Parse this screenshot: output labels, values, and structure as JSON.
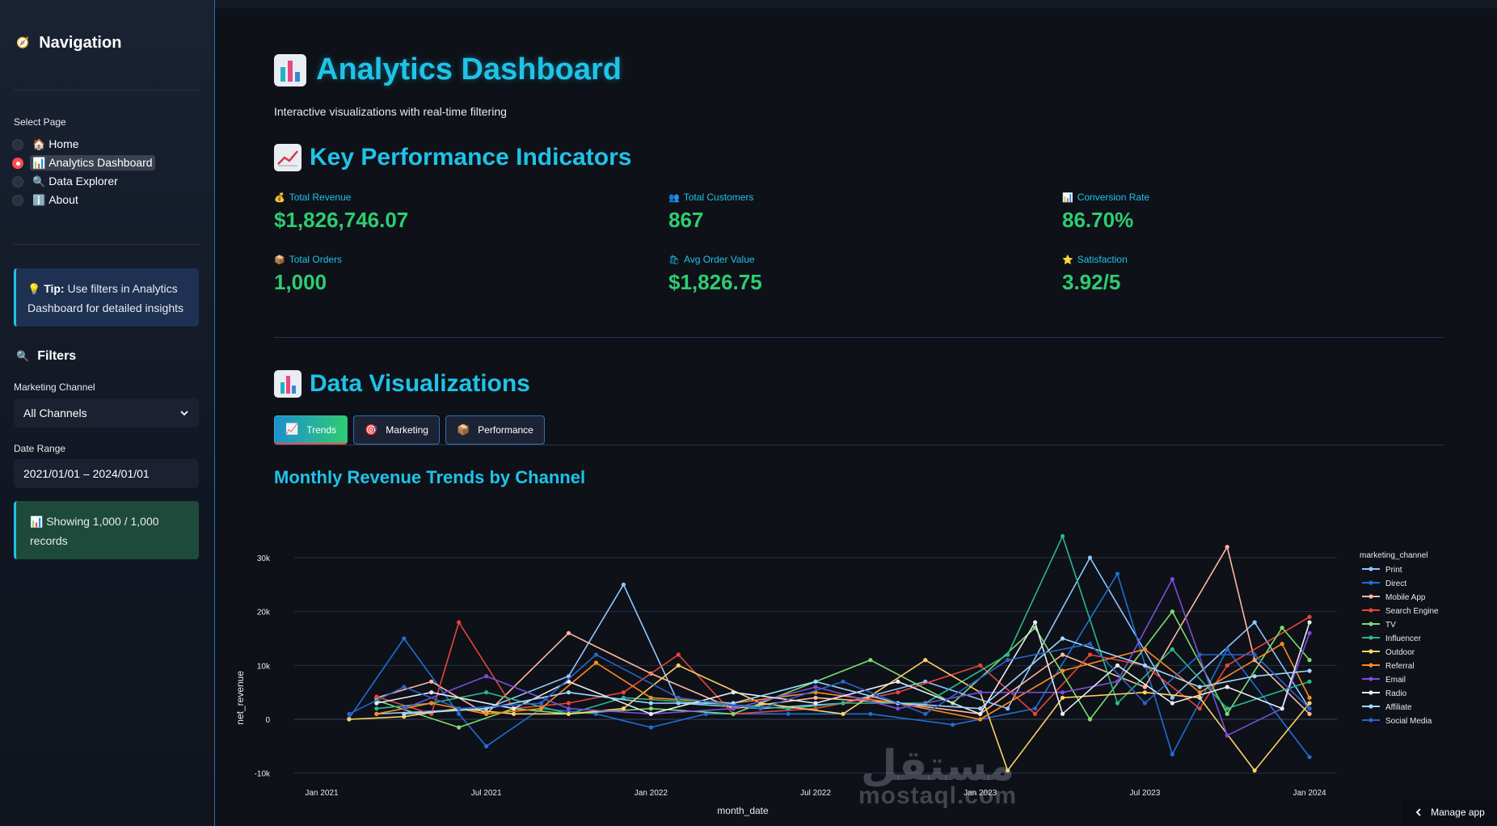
{
  "sidebar": {
    "nav_title": "Navigation",
    "select_page_label": "Select Page",
    "pages": [
      {
        "icon": "🏠",
        "label": "Home",
        "selected": false
      },
      {
        "icon": "📊",
        "label": "Analytics Dashboard",
        "selected": true
      },
      {
        "icon": "🔍",
        "label": "Data Explorer",
        "selected": false
      },
      {
        "icon": "ℹ️",
        "label": "About",
        "selected": false
      }
    ],
    "tip_bold": "Tip:",
    "tip_text": " Use filters in Analytics Dashboard for detailed insights",
    "filters_title": "Filters",
    "channel_label": "Marketing Channel",
    "channel_value": "All Channels",
    "date_label": "Date Range",
    "date_value": "2021/01/01 – 2024/01/01",
    "records_text": "Showing 1,000 / 1,000 records"
  },
  "main": {
    "page_title": "Analytics Dashboard",
    "subtitle": "Interactive visualizations with real-time filtering",
    "kpi_section_title": "Key Performance Indicators",
    "viz_section_title": "Data Visualizations",
    "kpis": [
      {
        "icon": "💰",
        "label": "Total Revenue",
        "value": "$1,826,746.07"
      },
      {
        "icon": "👥",
        "label": "Total Customers",
        "value": "867"
      },
      {
        "icon": "📊",
        "label": "Conversion Rate",
        "value": "86.70%"
      },
      {
        "icon": "📦",
        "label": "Total Orders",
        "value": "1,000"
      },
      {
        "icon": "🛍",
        "label": "Avg Order Value",
        "value": "$1,826.75"
      },
      {
        "icon": "⭐",
        "label": "Satisfaction",
        "value": "3.92/5"
      }
    ],
    "tabs": [
      {
        "icon": "📈",
        "label": "Trends",
        "active": true
      },
      {
        "icon": "🎯",
        "label": "Marketing",
        "active": false
      },
      {
        "icon": "📦",
        "label": "Performance",
        "active": false
      }
    ],
    "chart_title": "Monthly Revenue Trends by Channel"
  },
  "watermark": {
    "arabic": "مستقل",
    "latin": "mostaql.com"
  },
  "manage_app_label": "Manage app",
  "colors": {
    "accent": "#1fc3e8",
    "kpi_value": "#2ecc71",
    "radio_active": "#ff4b4b"
  },
  "chart_data": {
    "type": "line",
    "title": "Monthly Revenue Trends by Channel",
    "xlabel": "month_date",
    "ylabel": "net_revenue",
    "legend_title": "marketing_channel",
    "ylim": [
      -12000,
      36000
    ],
    "y_ticks": [
      -10000,
      0,
      10000,
      20000,
      30000
    ],
    "y_tick_labels": [
      "-10k",
      "0",
      "10k",
      "20k",
      "30k"
    ],
    "x_ticks": [
      0,
      6,
      12,
      18,
      24,
      30,
      36
    ],
    "x_tick_labels": [
      "Jan 2021",
      "Jul 2021",
      "Jan 2022",
      "Jul 2022",
      "Jan 2023",
      "Jul 2023",
      "Jan 2024"
    ],
    "x_unit": "months since Jan 2021",
    "series": [
      {
        "name": "Print",
        "color": "#8fc7ff",
        "x": [
          2,
          6,
          9,
          11,
          13,
          16,
          19,
          22,
          25,
          28,
          31,
          34,
          36
        ],
        "values": [
          1000,
          2000,
          8000,
          25000,
          3000,
          2000,
          3000,
          7000,
          2000,
          30000,
          4000,
          18000,
          2000
        ]
      },
      {
        "name": "Direct",
        "color": "#1f6fd6",
        "x": [
          1,
          3,
          5,
          6,
          8,
          10,
          12,
          14,
          17,
          20,
          23,
          26,
          29,
          31,
          33,
          36
        ],
        "values": [
          200,
          15000,
          1000,
          -5000,
          2000,
          1000,
          -1500,
          1000,
          1000,
          1000,
          -1000,
          2000,
          27000,
          -6500,
          13000,
          -7000
        ]
      },
      {
        "name": "Mobile App",
        "color": "#ffb8a0",
        "x": [
          2,
          4,
          6,
          9,
          12,
          15,
          18,
          21,
          24,
          27,
          30,
          33,
          34,
          36
        ],
        "values": [
          4000,
          7000,
          1000,
          16000,
          8500,
          2000,
          4000,
          3000,
          1000,
          12000,
          6000,
          32000,
          11000,
          1000
        ]
      },
      {
        "name": "Search Engine",
        "color": "#e8453c",
        "x": [
          2,
          4,
          5,
          7,
          9,
          11,
          13,
          15,
          18,
          21,
          24,
          26,
          28,
          30,
          32,
          33,
          36
        ],
        "values": [
          4200,
          1000,
          18000,
          2000,
          3000,
          5000,
          12000,
          1000,
          2000,
          5000,
          10000,
          1000,
          12000,
          10000,
          2000,
          10000,
          19000
        ]
      },
      {
        "name": "TV",
        "color": "#7ddd6f",
        "x": [
          2,
          5,
          7,
          9,
          12,
          15,
          18,
          20,
          23,
          26,
          28,
          31,
          33,
          35,
          36
        ],
        "values": [
          3500,
          -1500,
          2000,
          1000,
          2000,
          1000,
          7000,
          11000,
          3000,
          17000,
          0,
          20000,
          1000,
          17000,
          11000
        ]
      },
      {
        "name": "Influencer",
        "color": "#2bb88a",
        "x": [
          2,
          4,
          6,
          9,
          11,
          14,
          17,
          19,
          22,
          25,
          27,
          29,
          31,
          33,
          36
        ],
        "values": [
          2000,
          3000,
          5000,
          1000,
          4000,
          3000,
          2000,
          3000,
          3000,
          12000,
          34000,
          3000,
          13000,
          2000,
          7000
        ]
      },
      {
        "name": "Outdoor",
        "color": "#ffd166",
        "x": [
          1,
          3,
          5,
          7,
          9,
          11,
          13,
          16,
          19,
          22,
          24,
          25,
          27,
          30,
          32,
          34,
          36
        ],
        "values": [
          0,
          500,
          2000,
          1000,
          1000,
          2000,
          10000,
          3000,
          1000,
          11000,
          5000,
          -9500,
          4000,
          5000,
          4000,
          -9500,
          3000
        ]
      },
      {
        "name": "Referral",
        "color": "#ff8a1f",
        "x": [
          2,
          4,
          6,
          8,
          10,
          12,
          15,
          18,
          21,
          24,
          27,
          30,
          32,
          35,
          36
        ],
        "values": [
          1000,
          3000,
          1000,
          2000,
          10500,
          4000,
          3000,
          5000,
          3000,
          0,
          9000,
          13000,
          5000,
          14000,
          4000
        ]
      },
      {
        "name": "Email",
        "color": "#7c4ddb",
        "x": [
          3,
          6,
          9,
          12,
          15,
          18,
          21,
          24,
          27,
          29,
          31,
          33,
          35,
          36
        ],
        "values": [
          2000,
          8000,
          2000,
          1000,
          2000,
          6000,
          2000,
          5000,
          5000,
          7000,
          26000,
          -3000,
          2000,
          16000
        ]
      },
      {
        "name": "Radio",
        "color": "#e8ecf2",
        "x": [
          2,
          4,
          7,
          9,
          12,
          15,
          18,
          21,
          24,
          26,
          27,
          29,
          31,
          33,
          35,
          36
        ],
        "values": [
          3000,
          5000,
          2000,
          7000,
          1000,
          5000,
          3000,
          7000,
          1000,
          18000,
          1000,
          10000,
          3000,
          6000,
          2000,
          18000
        ]
      },
      {
        "name": "Affiliate",
        "color": "#9fd8ff",
        "x": [
          3,
          6,
          9,
          12,
          15,
          18,
          21,
          24,
          27,
          30,
          32,
          34,
          36
        ],
        "values": [
          1000,
          2000,
          5000,
          3000,
          3000,
          7000,
          3000,
          2000,
          15000,
          10000,
          6000,
          8000,
          9000
        ]
      },
      {
        "name": "Social Media",
        "color": "#2a63c9",
        "x": [
          1,
          3,
          5,
          8,
          10,
          13,
          16,
          19,
          22,
          25,
          28,
          30,
          32,
          34,
          36
        ],
        "values": [
          1000,
          6000,
          2000,
          3000,
          12000,
          4000,
          2000,
          7000,
          1000,
          11000,
          14000,
          3000,
          12000,
          12000,
          2000
        ]
      }
    ]
  }
}
